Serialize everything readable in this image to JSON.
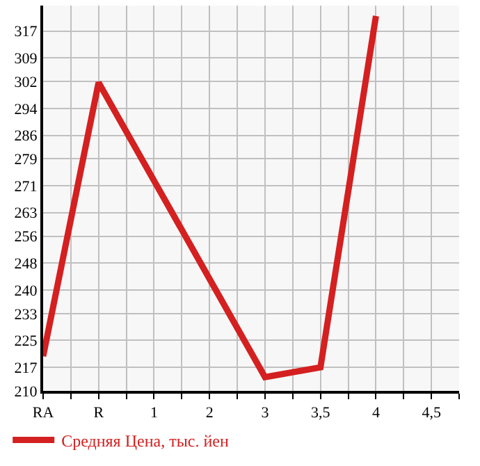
{
  "chart_data": {
    "type": "line",
    "categories": [
      "RA",
      "R",
      "1",
      "2",
      "3",
      "3,5",
      "4",
      "4,5"
    ],
    "series": [
      {
        "name": "Средняя Цена, тыс. йен",
        "color": "#d42020",
        "values": [
          220.3,
          301.7,
          272.5,
          243.3,
          214.1,
          217.0,
          321.5,
          null
        ]
      }
    ],
    "ylim": [
      210,
      324.6
    ],
    "yticks": [
      210,
      217,
      225,
      233,
      240,
      248,
      256,
      263,
      271,
      279,
      286,
      294,
      302,
      309,
      317
    ],
    "grid": true,
    "legend": "bottom",
    "marker": "none",
    "line_style": "solid"
  }
}
